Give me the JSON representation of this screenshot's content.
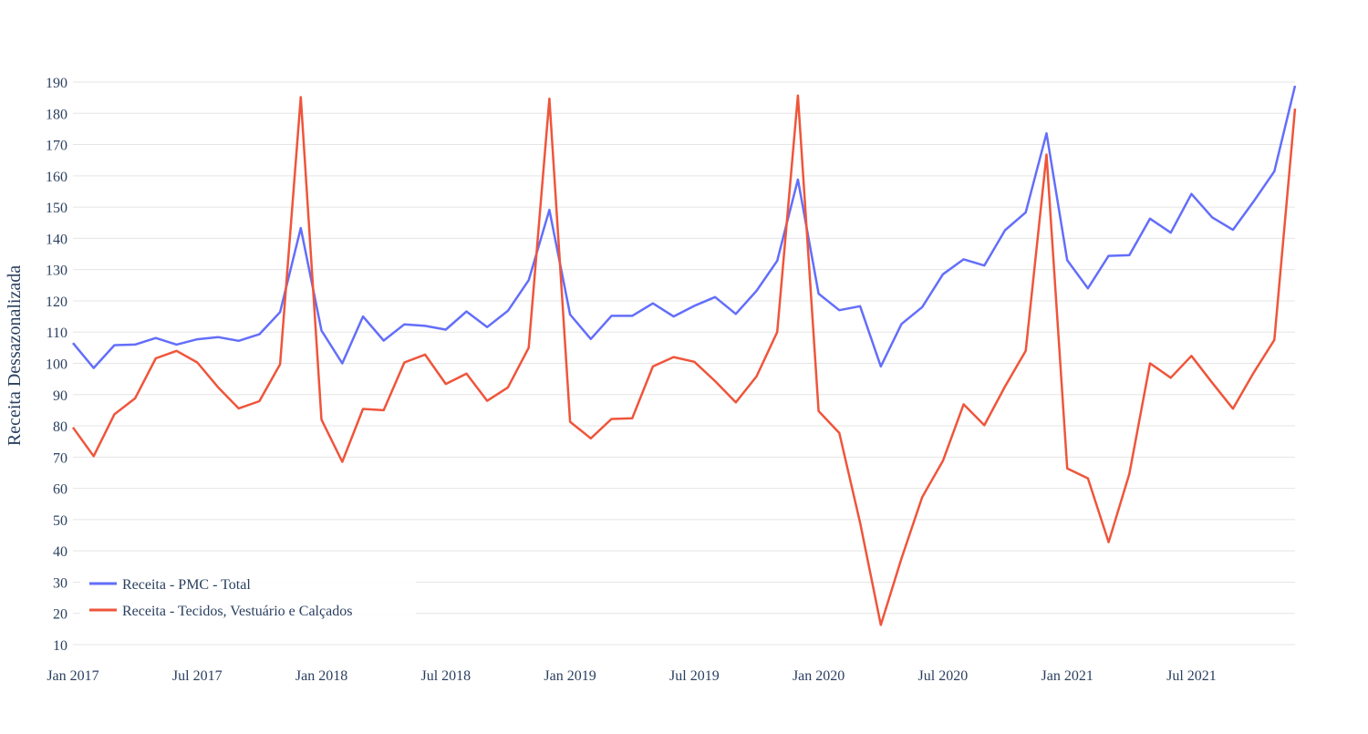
{
  "chart_data": {
    "type": "line",
    "title": "",
    "xlabel": "",
    "ylabel": "Receita Dessazonalizada",
    "ylim": [
      10,
      190
    ],
    "yticks": [
      10,
      20,
      30,
      40,
      50,
      60,
      70,
      80,
      90,
      100,
      110,
      120,
      130,
      140,
      150,
      160,
      170,
      180,
      190
    ],
    "xticks": [
      {
        "value": "2017-01",
        "label": "Jan 2017"
      },
      {
        "value": "2017-07",
        "label": "Jul 2017"
      },
      {
        "value": "2018-01",
        "label": "Jan 2018"
      },
      {
        "value": "2018-07",
        "label": "Jul 2018"
      },
      {
        "value": "2019-01",
        "label": "Jan 2019"
      },
      {
        "value": "2019-07",
        "label": "Jul 2019"
      },
      {
        "value": "2020-01",
        "label": "Jan 2020"
      },
      {
        "value": "2020-07",
        "label": "Jul 2020"
      },
      {
        "value": "2021-01",
        "label": "Jan 2021"
      },
      {
        "value": "2021-07",
        "label": "Jul 2021"
      }
    ],
    "grid": true,
    "legend_position": "bottom-left",
    "x": [
      "2017-01",
      "2017-02",
      "2017-03",
      "2017-04",
      "2017-05",
      "2017-06",
      "2017-07",
      "2017-08",
      "2017-09",
      "2017-10",
      "2017-11",
      "2017-12",
      "2018-01",
      "2018-02",
      "2018-03",
      "2018-04",
      "2018-05",
      "2018-06",
      "2018-07",
      "2018-08",
      "2018-09",
      "2018-10",
      "2018-11",
      "2018-12",
      "2019-01",
      "2019-02",
      "2019-03",
      "2019-04",
      "2019-05",
      "2019-06",
      "2019-07",
      "2019-08",
      "2019-09",
      "2019-10",
      "2019-11",
      "2019-12",
      "2020-01",
      "2020-02",
      "2020-03",
      "2020-04",
      "2020-05",
      "2020-06",
      "2020-07",
      "2020-08",
      "2020-09",
      "2020-10",
      "2020-11",
      "2020-12",
      "2021-01",
      "2021-02",
      "2021-03",
      "2021-04",
      "2021-05",
      "2021-06",
      "2021-07",
      "2021-08",
      "2021-09",
      "2021-10",
      "2021-11",
      "2021-12"
    ],
    "series": [
      {
        "name": "Receita - PMC - Total",
        "color": "#636efa",
        "values": [
          106.5,
          98.5,
          105.8,
          106.0,
          108.1,
          106.0,
          107.7,
          108.4,
          107.2,
          109.3,
          116.4,
          143.3,
          110.5,
          100.0,
          115.0,
          107.3,
          112.5,
          112.0,
          110.8,
          116.6,
          111.6,
          116.8,
          126.6,
          149.1,
          115.6,
          107.8,
          115.2,
          115.2,
          119.2,
          115.0,
          118.4,
          121.2,
          115.8,
          123.2,
          132.8,
          158.8,
          122.3,
          117.0,
          118.3,
          99.0,
          112.6,
          118.0,
          128.5,
          133.3,
          131.3,
          142.6,
          148.3,
          173.6,
          133.0,
          124.0,
          134.4,
          134.6,
          146.3,
          141.8,
          154.2,
          146.7,
          142.7,
          151.8,
          161.4,
          188.8
        ]
      },
      {
        "name": "Receita - Tecidos, Vestuário e Calçados",
        "color": "#ef553b",
        "values": [
          79.5,
          70.3,
          83.7,
          88.8,
          101.6,
          104.0,
          100.3,
          92.4,
          85.6,
          87.9,
          99.7,
          185.2,
          82.0,
          68.5,
          85.4,
          85.0,
          100.3,
          102.8,
          93.4,
          96.7,
          88.0,
          92.3,
          105.0,
          184.7,
          81.3,
          76.0,
          82.2,
          82.4,
          99.0,
          102.0,
          100.5,
          94.3,
          87.5,
          95.8,
          110.0,
          185.7,
          84.7,
          77.7,
          49.0,
          16.3,
          37.6,
          57.2,
          68.8,
          86.9,
          80.2,
          92.6,
          104.0,
          166.8,
          66.4,
          63.2,
          42.8,
          64.6,
          100.0,
          95.4,
          102.4,
          93.8,
          85.5,
          97.0,
          107.5,
          181.5
        ]
      }
    ]
  }
}
